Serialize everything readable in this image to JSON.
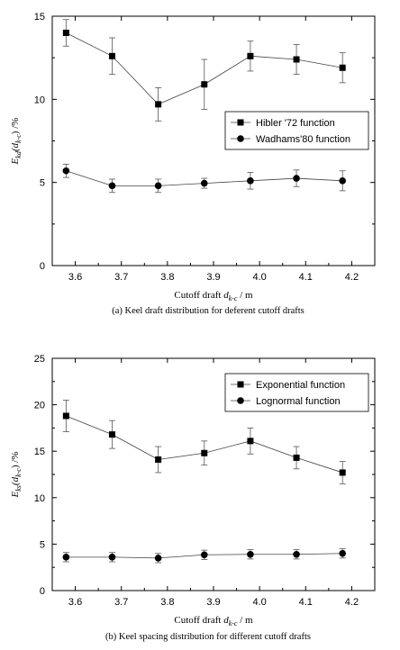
{
  "chart_data": [
    {
      "type": "line",
      "caption": "(a) Keel draft distribution for deferent cutoff drafts",
      "xlabel": {
        "main": "Cutoff draft ",
        "var": "d",
        "sub": "k-c",
        "tail": " / m"
      },
      "ylabel": {
        "main": "E",
        "sub": "kd",
        "mid": "(d",
        "sub2": "k-c",
        "tail": ") /%"
      },
      "xlim": [
        3.55,
        4.25
      ],
      "ylim": [
        0,
        15
      ],
      "xticks": [
        3.6,
        3.7,
        3.8,
        3.9,
        4.0,
        4.1,
        4.2
      ],
      "yticks": [
        0,
        5,
        10,
        15
      ],
      "x": [
        3.58,
        3.68,
        3.78,
        3.88,
        3.98,
        4.08,
        4.18
      ],
      "legend_position": "center-right",
      "series": [
        {
          "name": "Hibler '72 function",
          "marker": "square",
          "values": [
            14.0,
            12.6,
            9.7,
            10.9,
            12.6,
            12.4,
            11.9
          ],
          "error": [
            0.8,
            1.1,
            1.0,
            1.5,
            0.9,
            0.9,
            0.9
          ]
        },
        {
          "name": "Wadhams'80 function",
          "marker": "circle",
          "values": [
            5.7,
            4.8,
            4.8,
            4.95,
            5.1,
            5.25,
            5.1
          ],
          "error": [
            0.4,
            0.4,
            0.4,
            0.3,
            0.5,
            0.5,
            0.6
          ]
        }
      ]
    },
    {
      "type": "line",
      "caption": "(b) Keel spacing distribution for different cutoff drafts",
      "xlabel": {
        "main": "Cutoff draft ",
        "var": "d",
        "sub": "k-c",
        "tail": " / m"
      },
      "ylabel": {
        "main": "E",
        "sub": "ks",
        "mid": "(d",
        "sub2": "k-c",
        "tail": ") /%"
      },
      "xlim": [
        3.55,
        4.25
      ],
      "ylim": [
        0,
        25
      ],
      "xticks": [
        3.6,
        3.7,
        3.8,
        3.9,
        4.0,
        4.1,
        4.2
      ],
      "yticks": [
        0,
        5,
        10,
        15,
        20,
        25
      ],
      "x": [
        3.58,
        3.68,
        3.78,
        3.88,
        3.98,
        4.08,
        4.18
      ],
      "legend_position": "top-right",
      "series": [
        {
          "name": "Exponential function",
          "marker": "square",
          "values": [
            18.8,
            16.8,
            14.1,
            14.8,
            16.1,
            14.3,
            12.7
          ],
          "error": [
            1.7,
            1.5,
            1.4,
            1.3,
            1.4,
            1.2,
            1.2
          ]
        },
        {
          "name": "Lognormal function",
          "marker": "circle",
          "values": [
            3.6,
            3.6,
            3.5,
            3.85,
            3.9,
            3.9,
            4.0
          ],
          "error": [
            0.5,
            0.5,
            0.5,
            0.5,
            0.5,
            0.5,
            0.5
          ]
        }
      ]
    }
  ]
}
